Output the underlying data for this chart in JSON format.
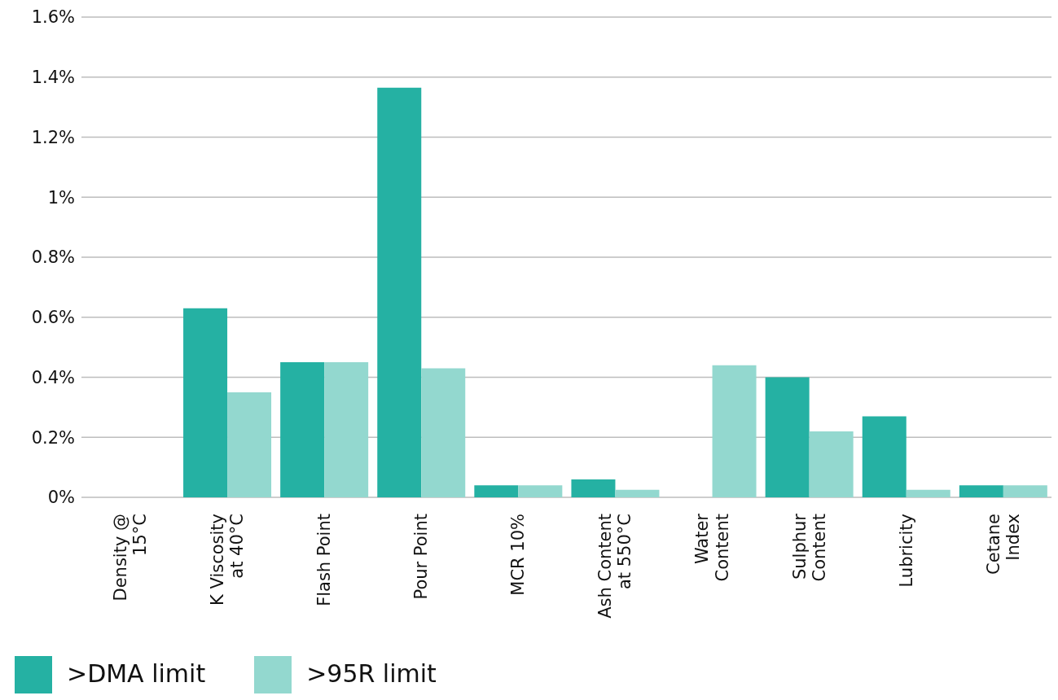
{
  "chart_data": {
    "type": "bar",
    "categories": [
      "Density @\n15°C",
      "K Viscosity\nat 40°C",
      "Flash Point",
      "Pour Point",
      "MCR 10%",
      "Ash Content\nat 550°C",
      "Water\nContent",
      "Sulphur\nContent",
      "Lubricity",
      "Cetane\nIndex"
    ],
    "series": [
      {
        "name": ">DMA limit",
        "color": "#25b1a3",
        "values": [
          0,
          0.63,
          0.45,
          1.365,
          0.04,
          0.06,
          0,
          0.4,
          0.27,
          0.04
        ]
      },
      {
        "name": ">95R limit",
        "color": "#93d8cf",
        "values": [
          0,
          0.35,
          0.45,
          0.43,
          0.04,
          0.025,
          0.44,
          0.22,
          0.025,
          0.04
        ]
      }
    ],
    "ylim": [
      0,
      1.6
    ],
    "yticks": [
      {
        "value": 0,
        "label": "0%"
      },
      {
        "value": 0.2,
        "label": "0.2%"
      },
      {
        "value": 0.4,
        "label": "0.4%"
      },
      {
        "value": 0.6,
        "label": "0.6%"
      },
      {
        "value": 0.8,
        "label": "0.8%"
      },
      {
        "value": 1,
        "label": "1%"
      },
      {
        "value": 1.2,
        "label": "1.2%"
      },
      {
        "value": 1.4,
        "label": "1.4%"
      },
      {
        "value": 1.6,
        "label": "1.6%"
      }
    ],
    "grid": "y",
    "legend": "bottom left"
  }
}
